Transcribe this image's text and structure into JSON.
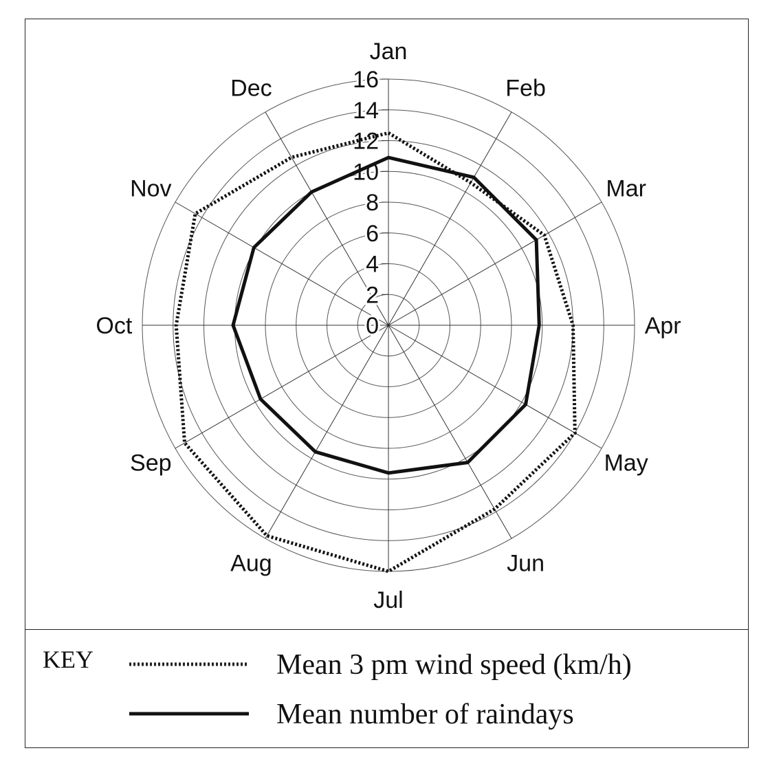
{
  "chart_data": {
    "type": "radar",
    "categories": [
      "Jan",
      "Feb",
      "Mar",
      "Apr",
      "May",
      "Jun",
      "Jul",
      "Aug",
      "Sep",
      "Oct",
      "Nov",
      "Dec"
    ],
    "radial_ticks": [
      "0",
      "2",
      "4",
      "6",
      "8",
      "10",
      "12",
      "14",
      "16"
    ],
    "rlim": [
      0,
      16
    ],
    "series": [
      {
        "name": "Mean 3 pm wind speed (km/h)",
        "style": "dotted",
        "values": [
          12.5,
          10.7,
          11.7,
          12.0,
          14.0,
          13.8,
          16.0,
          15.8,
          15.3,
          13.8,
          14.5,
          12.6
        ]
      },
      {
        "name": "Mean number of raindays",
        "style": "solid",
        "values": [
          10.9,
          11.1,
          11.1,
          9.8,
          10.3,
          10.3,
          9.6,
          9.5,
          9.6,
          10.1,
          10.1,
          10.0
        ]
      }
    ],
    "legend": {
      "title": "KEY",
      "placement": "bottom"
    }
  }
}
